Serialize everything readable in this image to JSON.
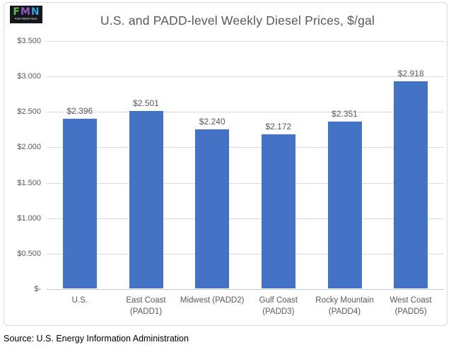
{
  "logo": {
    "letters": [
      {
        "char": "F",
        "color": "#6ABF4B"
      },
      {
        "char": "M",
        "color": "#8F5BBF"
      },
      {
        "char": "N",
        "color": "#3E9FD9"
      }
    ],
    "subtext": "Fuels Market News",
    "background": "#14181c"
  },
  "chart_data": {
    "type": "bar",
    "title": "U.S. and PADD-level Weekly Diesel Prices, $/gal",
    "categories": [
      "U.S.",
      "East Coast (PADD1)",
      "Midwest (PADD2)",
      "Gulf Coast (PADD3)",
      "Rocky Mountain (PADD4)",
      "West Coast (PADD5)"
    ],
    "category_lines": [
      [
        "U.S."
      ],
      [
        "East Coast",
        "(PADD1)"
      ],
      [
        "Midwest (PADD2)"
      ],
      [
        "Gulf Coast",
        "(PADD3)"
      ],
      [
        "Rocky Mountain",
        "(PADD4)"
      ],
      [
        "West Coast",
        "(PADD5)"
      ]
    ],
    "values": [
      2.396,
      2.501,
      2.24,
      2.172,
      2.351,
      2.918
    ],
    "data_labels": [
      "$2.396",
      "$2.501",
      "$2.240",
      "$2.172",
      "$2.351",
      "$2.918"
    ],
    "y_ticks": [
      {
        "label": "$-",
        "value": 0
      },
      {
        "label": "$0.500",
        "value": 0.5
      },
      {
        "label": "$1.000",
        "value": 1.0
      },
      {
        "label": "$1.500",
        "value": 1.5
      },
      {
        "label": "$2.000",
        "value": 2.0
      },
      {
        "label": "$2.500",
        "value": 2.5
      },
      {
        "label": "$3.000",
        "value": 3.0
      },
      {
        "label": "$3.500",
        "value": 3.5
      }
    ],
    "ylim": [
      0,
      3.5
    ],
    "xlabel": "",
    "ylabel": "",
    "grid": true,
    "legend": false,
    "bar_color": "#4472C4",
    "gridline_color": "#D9D9D9",
    "text_color": "#595959"
  },
  "source": {
    "text": "Source: U.S. Energy Information Administration"
  }
}
